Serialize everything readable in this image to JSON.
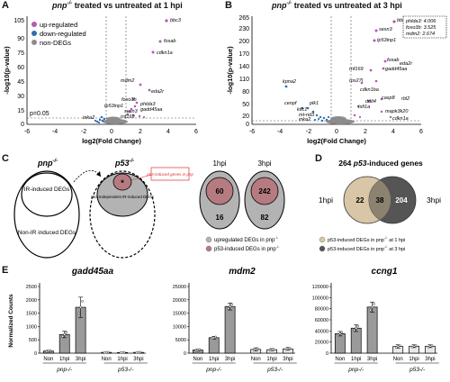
{
  "panel_A": {
    "letter": "A",
    "title_gene": "pnp",
    "title_sup": "-/-",
    "title_rest": "treated vs untreated at 1 hpi",
    "legend": [
      {
        "label": "up-regulated",
        "color": "#b05bb5"
      },
      {
        "label": "down-regulated",
        "color": "#2f6fb3"
      },
      {
        "label": "non-DEGs",
        "color": "#8c8c8c"
      }
    ],
    "pval_label": "p=0.05",
    "ylabel": "-log10(p-value)",
    "xlabel": "log2(Fold Change)",
    "xticks": [
      "-6",
      "-4",
      "-2",
      "0",
      "2",
      "4",
      "6"
    ],
    "yticks": [
      "0",
      "15",
      "30",
      "45",
      "60",
      "75",
      "90",
      "105"
    ],
    "gene_labels": [
      "bbc3",
      "fosab",
      "cdkn1a",
      "mdm2",
      "eda2r",
      "foxo3b",
      "phlda3",
      "gadd45aa",
      "tp53inp1",
      "sesn3",
      "rnf169",
      "inka2"
    ]
  },
  "panel_B": {
    "letter": "B",
    "title_gene": "pnp",
    "title_sup": "-/-",
    "title_rest": "treated vs untreated at 3 hpi",
    "inset": [
      "phlda3: 4.006",
      "foxo3b: 3.525",
      "mdm2: 2.674"
    ],
    "ylabel": "-log10(p-value)",
    "xlabel": "log2(Fold Change)",
    "xticks": [
      "-6",
      "-4",
      "-2",
      "0",
      "2",
      "4",
      "6"
    ],
    "yticks": [
      "0",
      "20",
      "50",
      "80",
      "110",
      "140",
      "170",
      "200",
      "230",
      "265"
    ],
    "gene_labels": [
      "bbc3",
      "sesn3",
      "tp53inp1",
      "fosab",
      "eda2r",
      "gadd45aa",
      "rnf169",
      "rps27l",
      "kpna2",
      "cdkn1ba",
      "casp8",
      "rbl2",
      "cenpf",
      "plk1",
      "ddit4",
      "tsfi1a",
      "kifc1",
      "mt-nd3",
      "inka2",
      "mapk3k20",
      "cdkn1a"
    ]
  },
  "panel_C": {
    "letter": "C",
    "pnp_label": "pnp",
    "pnp_sup": "-/-",
    "p53_label": "p53",
    "p53_sup": "-/-",
    "ir_induced": "IR-induced DEGs",
    "non_ir_induced": "Non-IR induced DEGs",
    "p53_independent": "p53-independent IR-induced DEGs",
    "p53_box": "p53-induced genes in pnp",
    "asterisk": "*",
    "hpi1_label": "1hpi",
    "hpi3_label": "3hpi",
    "hpi1_inner": "60",
    "hpi1_outer": "16",
    "hpi3_inner": "242",
    "hpi3_outer": "82",
    "legend": [
      {
        "label": "upregulated DEGs in pnp",
        "sup": "-/-",
        "color": "#b3b3b3"
      },
      {
        "label": "p53-induced DEGs in pnp",
        "sup": "-/-",
        "color": "#b57b80"
      }
    ]
  },
  "panel_D": {
    "letter": "D",
    "title_pre": "264",
    "title_italic": "p53",
    "title_post": "-induced genes",
    "left_label": "1hpi",
    "right_label": "3hpi",
    "left_only": "22",
    "overlap": "38",
    "right_only": "204",
    "legend": [
      {
        "label": "p53-induced DEGs in pnp",
        "sup": "-/-",
        "tail": "at 1 hpi",
        "color": "#d8c6a6"
      },
      {
        "label": "p53-induced DEGs in pnp",
        "sup": "-/-",
        "tail": "at 3 hpi",
        "color": "#555555"
      }
    ]
  },
  "panel_E": {
    "letter": "E",
    "ylabel": "Normalized Counts",
    "group_labels": [
      "pnp-/-",
      "p53-/-"
    ],
    "categories": [
      "Non",
      "1hpi",
      "3hpi",
      "Non",
      "1hpi",
      "3hpi"
    ],
    "yticks_gadd45aa": [
      "0",
      "500",
      "1000",
      "1500",
      "2000",
      "2500"
    ],
    "yticks_mdm2": [
      "0",
      "5000",
      "10000",
      "15000",
      "20000",
      "25000"
    ],
    "yticks_ccng1": [
      "0",
      "20000",
      "40000",
      "60000",
      "80000",
      "100000",
      "120000"
    ]
  },
  "chart_data": [
    {
      "type": "bar",
      "title": "gadd45aa",
      "ylabel": "Normalized Counts",
      "categories": [
        "Non",
        "1hpi",
        "3hpi",
        "Non",
        "1hpi",
        "3hpi"
      ],
      "values": [
        80,
        700,
        1720,
        30,
        25,
        30
      ],
      "errors": [
        30,
        120,
        380,
        15,
        12,
        15
      ],
      "ylim": [
        0,
        2500
      ]
    },
    {
      "type": "bar",
      "title": "mdm2",
      "ylabel": "",
      "categories": [
        "Non",
        "1hpi",
        "3hpi",
        "Non",
        "1hpi",
        "3hpi"
      ],
      "values": [
        1200,
        5800,
        17500,
        1400,
        1300,
        1600
      ],
      "errors": [
        300,
        500,
        1300,
        600,
        400,
        500
      ],
      "ylim": [
        0,
        25000
      ]
    },
    {
      "type": "bar",
      "title": "ccng1",
      "ylabel": "",
      "categories": [
        "Non",
        "1hpi",
        "3hpi",
        "Non",
        "1hpi",
        "3hpi"
      ],
      "values": [
        35000,
        45000,
        83000,
        12000,
        12500,
        12500
      ],
      "errors": [
        4000,
        6000,
        9000,
        3000,
        2500,
        2500
      ],
      "ylim": [
        0,
        120000
      ]
    }
  ]
}
